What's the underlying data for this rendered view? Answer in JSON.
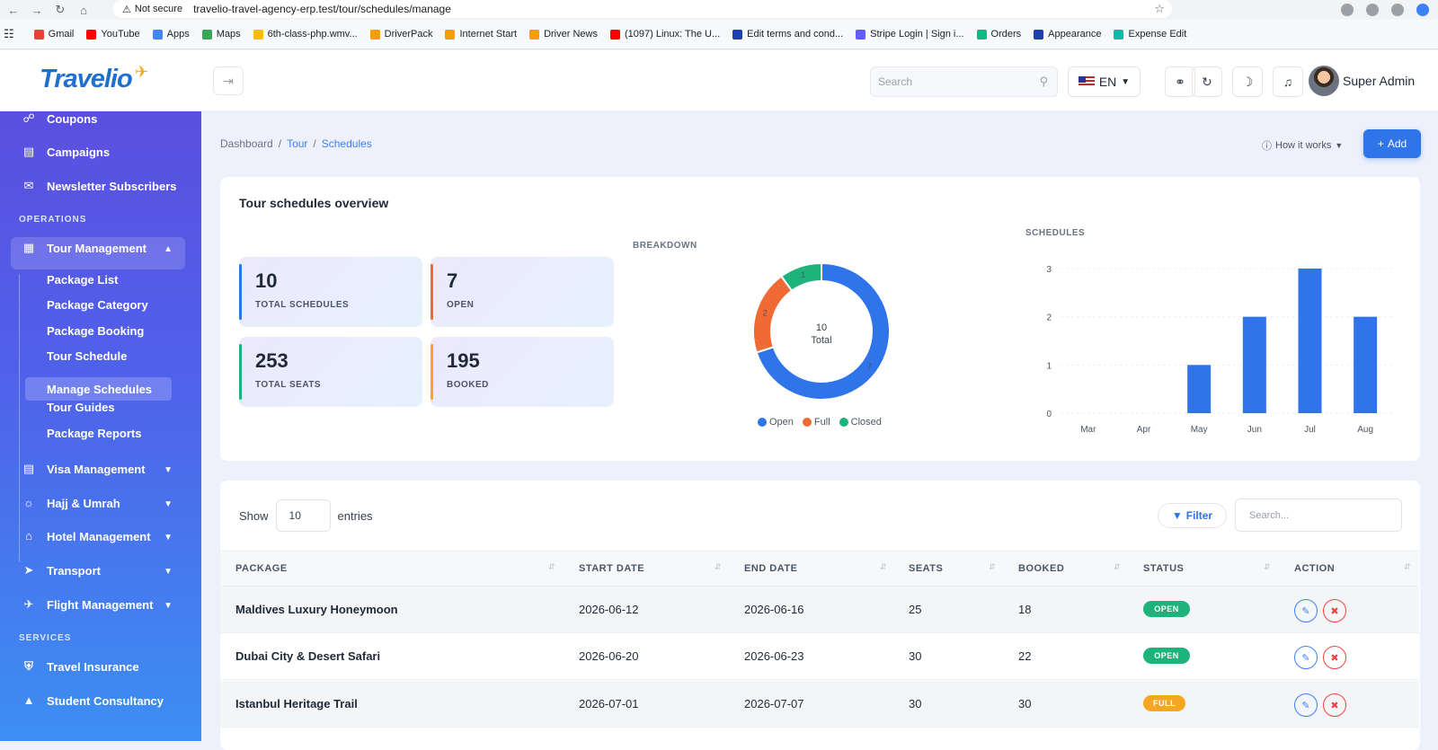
{
  "browser": {
    "not_secure": "Not secure",
    "url": "travelio-travel-agency-erp.test/tour/schedules/manage",
    "bookmarks": [
      {
        "label": "Gmail",
        "color": "#ea4335"
      },
      {
        "label": "YouTube",
        "color": "#ff0000"
      },
      {
        "label": "Apps",
        "color": "#4285f4"
      },
      {
        "label": "Maps",
        "color": "#34a853"
      },
      {
        "label": "6th-class-php.wmv...",
        "color": "#fbbc04"
      },
      {
        "label": "DriverPack",
        "color": "#f59e0b"
      },
      {
        "label": "Internet Start",
        "color": "#f59e0b"
      },
      {
        "label": "Driver News",
        "color": "#f59e0b"
      },
      {
        "label": "(1097) Linux: The U...",
        "color": "#ff0000"
      },
      {
        "label": "Edit terms and cond...",
        "color": "#1e40af"
      },
      {
        "label": "Stripe Login | Sign i...",
        "color": "#635bff"
      },
      {
        "label": "Orders",
        "color": "#10b981"
      },
      {
        "label": "Appearance",
        "color": "#1e40af"
      },
      {
        "label": "Expense Edit",
        "color": "#14b8a6"
      }
    ]
  },
  "header": {
    "logo": "Travelio",
    "search_placeholder": "Search",
    "lang": "EN",
    "user_name": "Super Admin"
  },
  "sidebar": {
    "items_top": [
      {
        "label": "Coupons",
        "icon": "tag-icon"
      },
      {
        "label": "Campaigns",
        "icon": "message-icon"
      },
      {
        "label": "Newsletter Subscribers",
        "icon": "mail-icon"
      }
    ],
    "section_operations": "OPERATIONS",
    "tour_management": "Tour Management",
    "sub_items": [
      "Package List",
      "Package Category",
      "Package Booking",
      "Tour Schedule",
      "Manage Schedules",
      "Tour Guides",
      "Package Reports"
    ],
    "items_collapsed": [
      {
        "label": "Visa Management",
        "icon": "document-icon"
      },
      {
        "label": "Hajj & Umrah",
        "icon": "compass-icon"
      },
      {
        "label": "Hotel Management",
        "icon": "home-icon"
      },
      {
        "label": "Transport",
        "icon": "rocket-icon"
      },
      {
        "label": "Flight Management",
        "icon": "plane-icon"
      }
    ],
    "section_services": "SERVICES",
    "services": [
      {
        "label": "Travel Insurance",
        "icon": "shield-icon"
      },
      {
        "label": "Student Consultancy",
        "icon": "graduation-icon"
      }
    ]
  },
  "breadcrumb": {
    "home": "Dashboard",
    "sep": "/",
    "parent": "Tour",
    "current": "Schedules"
  },
  "actions": {
    "how_it_works": "How it works",
    "add": "Add"
  },
  "overview": {
    "title": "Tour schedules overview",
    "stats": [
      {
        "value": "10",
        "label": "TOTAL SCHEDULES",
        "color": "#2f74e8"
      },
      {
        "value": "7",
        "label": "OPEN",
        "color": "#f06a35"
      },
      {
        "value": "253",
        "label": "TOTAL SEATS",
        "color": "#1db37a"
      },
      {
        "value": "195",
        "label": "BOOKED",
        "color": "#f5a623"
      }
    ],
    "breakdown_label": "BREAKDOWN",
    "schedules_label": "SCHEDULES",
    "donut_center_value": "10",
    "donut_center_label": "Total"
  },
  "chart_data": [
    {
      "type": "pie",
      "title": "BREAKDOWN",
      "categories": [
        "Open",
        "Full",
        "Closed"
      ],
      "values": [
        7,
        2,
        1
      ],
      "colors": [
        "#2f74e8",
        "#f06a35",
        "#1db37a"
      ],
      "legend": "bottom"
    },
    {
      "type": "bar",
      "title": "SCHEDULES",
      "categories": [
        "Mar",
        "Apr",
        "May",
        "Jun",
        "Jul",
        "Aug"
      ],
      "values": [
        0,
        0,
        1,
        2,
        3,
        2
      ],
      "ylim": [
        0,
        3
      ],
      "yticks": [
        "0",
        "1",
        "2",
        "3"
      ],
      "color": "#2f74e8",
      "grid": true
    }
  ],
  "table": {
    "show_label": "Show",
    "entries_value": "10",
    "entries_label": "entries",
    "filter_label": "Filter",
    "search_placeholder": "Search...",
    "columns": [
      "PACKAGE",
      "START DATE",
      "END DATE",
      "SEATS",
      "BOOKED",
      "STATUS",
      "ACTION"
    ],
    "rows": [
      {
        "package": "Maldives Luxury Honeymoon",
        "start": "2026-06-12",
        "end": "2026-06-16",
        "seats": "25",
        "booked": "18",
        "status": "OPEN",
        "status_color": "#1db37a"
      },
      {
        "package": "Dubai City & Desert Safari",
        "start": "2026-06-20",
        "end": "2026-06-23",
        "seats": "30",
        "booked": "22",
        "status": "OPEN",
        "status_color": "#1db37a"
      },
      {
        "package": "Istanbul Heritage Trail",
        "start": "2026-07-01",
        "end": "2026-07-07",
        "seats": "30",
        "booked": "30",
        "status": "FULL",
        "status_color": "#f5a623"
      }
    ]
  }
}
